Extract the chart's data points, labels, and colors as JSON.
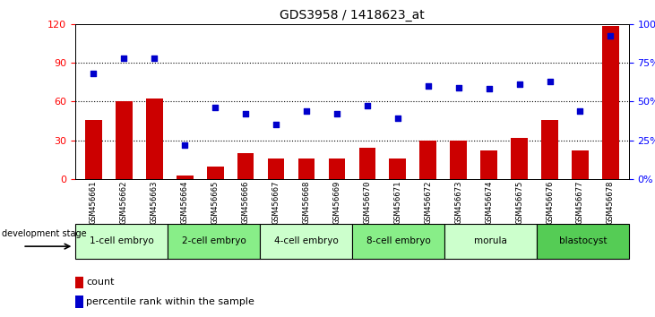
{
  "title": "GDS3958 / 1418623_at",
  "samples": [
    "GSM456661",
    "GSM456662",
    "GSM456663",
    "GSM456664",
    "GSM456665",
    "GSM456666",
    "GSM456667",
    "GSM456668",
    "GSM456669",
    "GSM456670",
    "GSM456671",
    "GSM456672",
    "GSM456673",
    "GSM456674",
    "GSM456675",
    "GSM456676",
    "GSM456677",
    "GSM456678"
  ],
  "counts": [
    46,
    60,
    62,
    3,
    10,
    20,
    16,
    16,
    16,
    24,
    16,
    30,
    30,
    22,
    32,
    46,
    22,
    118
  ],
  "percentiles": [
    68,
    78,
    78,
    22,
    46,
    42,
    35,
    44,
    42,
    47,
    39,
    60,
    59,
    58,
    61,
    63,
    44,
    92
  ],
  "bar_color": "#cc0000",
  "dot_color": "#0000cc",
  "left_ylim": [
    0,
    120
  ],
  "right_ylim": [
    0,
    100
  ],
  "left_yticks": [
    0,
    30,
    60,
    90,
    120
  ],
  "right_yticks": [
    0,
    25,
    50,
    75,
    100
  ],
  "right_yticklabels": [
    "0%",
    "25%",
    "50%",
    "75%",
    "100%"
  ],
  "grid_values": [
    30,
    60,
    90
  ],
  "stages": [
    {
      "label": "1-cell embryo",
      "start": 0,
      "end": 3,
      "color": "#ccffcc"
    },
    {
      "label": "2-cell embryo",
      "start": 3,
      "end": 6,
      "color": "#88ee88"
    },
    {
      "label": "4-cell embryo",
      "start": 6,
      "end": 9,
      "color": "#ccffcc"
    },
    {
      "label": "8-cell embryo",
      "start": 9,
      "end": 12,
      "color": "#88ee88"
    },
    {
      "label": "morula",
      "start": 12,
      "end": 15,
      "color": "#ccffcc"
    },
    {
      "label": "blastocyst",
      "start": 15,
      "end": 18,
      "color": "#55cc55"
    }
  ],
  "legend_count_label": "count",
  "legend_pct_label": "percentile rank within the sample",
  "dev_stage_label": "development stage",
  "tick_area_color": "#c0c0c0",
  "title_fontsize": 10,
  "tick_fontsize": 6.5,
  "stage_fontsize": 7.5,
  "legend_fontsize": 8
}
